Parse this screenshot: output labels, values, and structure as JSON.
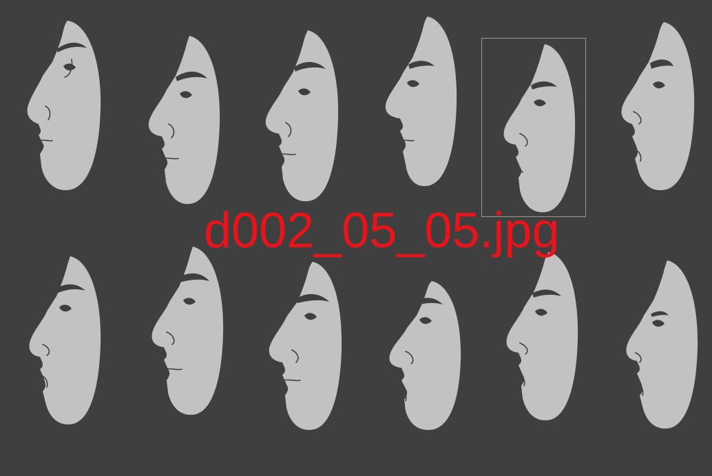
{
  "gallery": {
    "selected_filename": "d002_05_05.jpg",
    "colors": {
      "background": "#3f3f3f",
      "face": "#c2c2c2",
      "label": "#e8141c",
      "selection": "#9a9a9a"
    },
    "thumbnail_count": 12
  }
}
